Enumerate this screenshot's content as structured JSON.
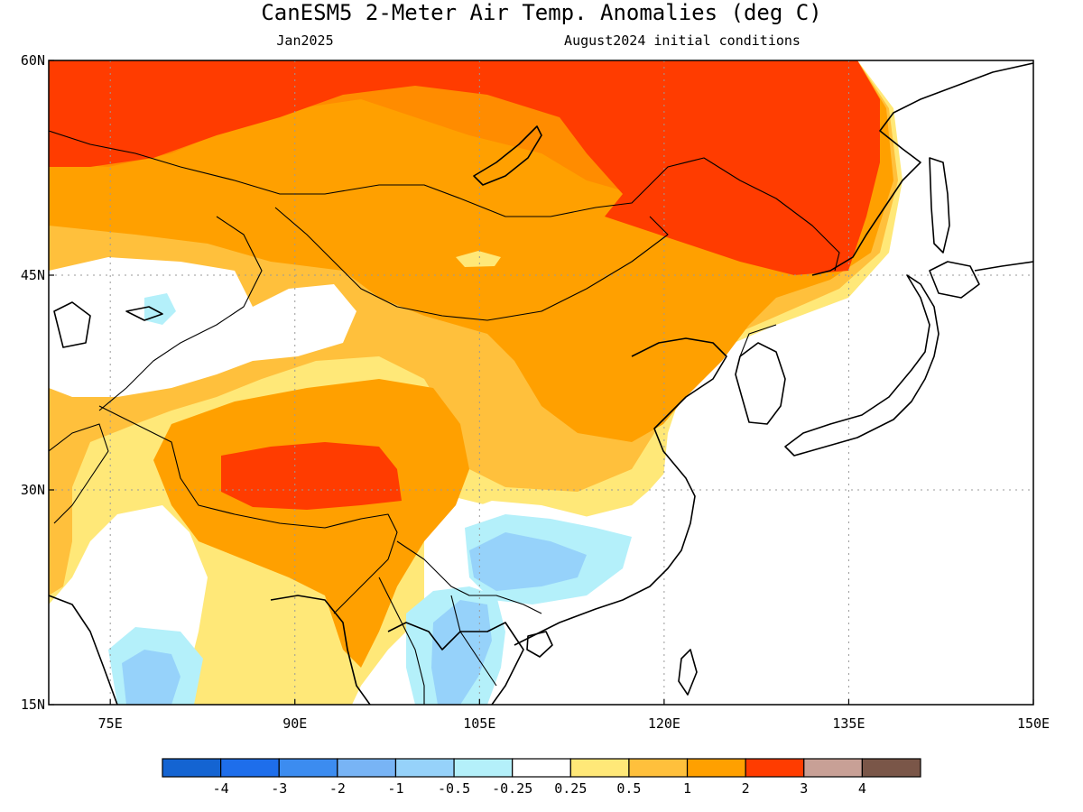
{
  "title": "CanESM5 2-Meter Air Temp. Anomalies (deg C)",
  "subtitle_left": "Jan2025",
  "subtitle_right": "August2024 initial conditions",
  "map": {
    "lon_range": [
      70,
      150
    ],
    "lat_range": [
      15,
      60
    ],
    "lat_ticks": [
      {
        "value": 60,
        "label": "60N"
      },
      {
        "value": 45,
        "label": "45N"
      },
      {
        "value": 30,
        "label": "30N"
      },
      {
        "value": 15,
        "label": "15N"
      }
    ],
    "lon_ticks": [
      {
        "value": 75,
        "label": "75E"
      },
      {
        "value": 90,
        "label": "90E"
      },
      {
        "value": 105,
        "label": "105E"
      },
      {
        "value": 120,
        "label": "120E"
      },
      {
        "value": 135,
        "label": "135E"
      },
      {
        "value": 150,
        "label": "150E"
      }
    ],
    "gridlines": "dotted"
  },
  "colorbar": {
    "colors": [
      "#1464d2",
      "#1e6eeb",
      "#3c8cf0",
      "#78b4f5",
      "#96d2fa",
      "#b4f0fa",
      "#ffffff",
      "#ffe878",
      "#ffc03c",
      "#ffa000",
      "#ff3c00",
      "#c8a096",
      "#7a5648"
    ],
    "labels": [
      "-4",
      "-3",
      "-2",
      "-1",
      "-0.5",
      "-0.25",
      "0.25",
      "0.5",
      "1",
      "2",
      "3",
      "4"
    ]
  },
  "regions": [
    {
      "name": "siberia-north",
      "level": 3
    },
    {
      "name": "amur-manchuria",
      "level": 3
    },
    {
      "name": "tibet-plateau",
      "level": 3
    },
    {
      "name": "mongolia-north-china",
      "level": 2
    },
    {
      "name": "kazakhstan-west",
      "level": 0.5
    },
    {
      "name": "southwest-china",
      "level": -1
    },
    {
      "name": "indochina",
      "level": -1
    },
    {
      "name": "south-india",
      "level": -1
    },
    {
      "name": "east-china-japan",
      "level": 0
    }
  ]
}
